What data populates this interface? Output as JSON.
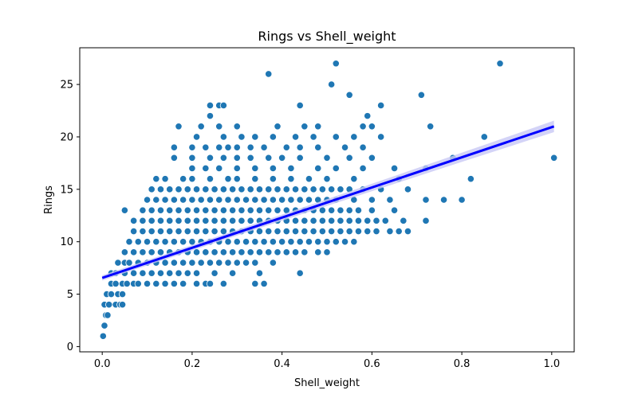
{
  "chart_data": {
    "type": "scatter",
    "title": "Rings vs Shell_weight",
    "xlabel": "Shell_weight",
    "ylabel": "Rings",
    "xlim": [
      -0.05,
      1.05
    ],
    "ylim": [
      -0.5,
      28.5
    ],
    "xticks": [
      0.0,
      0.2,
      0.4,
      0.6,
      0.8,
      1.0
    ],
    "xtick_labels": [
      "0.0",
      "0.2",
      "0.4",
      "0.6",
      "0.8",
      "1.0"
    ],
    "yticks": [
      0,
      5,
      10,
      15,
      20,
      25
    ],
    "ytick_labels": [
      "0",
      "5",
      "10",
      "15",
      "20",
      "25"
    ],
    "grid": false,
    "point_color": "#1f77b4",
    "regression": {
      "color": "#0000ff",
      "band_color": "#c8c8f5",
      "x": [
        0.0,
        1.005
      ],
      "y": [
        6.55,
        21.0
      ],
      "ci_halfwidth_start": 0.25,
      "ci_halfwidth_end": 0.55
    },
    "points": [
      [
        0.002,
        1
      ],
      [
        0.005,
        2
      ],
      [
        0.008,
        3
      ],
      [
        0.012,
        3
      ],
      [
        0.005,
        4
      ],
      [
        0.015,
        4
      ],
      [
        0.03,
        4
      ],
      [
        0.04,
        4
      ],
      [
        0.045,
        4
      ],
      [
        0.01,
        5
      ],
      [
        0.02,
        5
      ],
      [
        0.035,
        5
      ],
      [
        0.045,
        5
      ],
      [
        0.02,
        6
      ],
      [
        0.03,
        6
      ],
      [
        0.045,
        6
      ],
      [
        0.055,
        6
      ],
      [
        0.07,
        6
      ],
      [
        0.08,
        6
      ],
      [
        0.1,
        6
      ],
      [
        0.12,
        6
      ],
      [
        0.14,
        6
      ],
      [
        0.16,
        6
      ],
      [
        0.18,
        6
      ],
      [
        0.21,
        6
      ],
      [
        0.23,
        6
      ],
      [
        0.24,
        6
      ],
      [
        0.27,
        6
      ],
      [
        0.34,
        6
      ],
      [
        0.36,
        6
      ],
      [
        0.02,
        7
      ],
      [
        0.03,
        7
      ],
      [
        0.05,
        7
      ],
      [
        0.07,
        7
      ],
      [
        0.09,
        7
      ],
      [
        0.11,
        7
      ],
      [
        0.13,
        7
      ],
      [
        0.15,
        7
      ],
      [
        0.17,
        7
      ],
      [
        0.19,
        7
      ],
      [
        0.21,
        7
      ],
      [
        0.25,
        7
      ],
      [
        0.29,
        7
      ],
      [
        0.35,
        7
      ],
      [
        0.44,
        7
      ],
      [
        0.035,
        8
      ],
      [
        0.05,
        8
      ],
      [
        0.06,
        8
      ],
      [
        0.08,
        8
      ],
      [
        0.1,
        8
      ],
      [
        0.12,
        8
      ],
      [
        0.14,
        8
      ],
      [
        0.16,
        8
      ],
      [
        0.18,
        8
      ],
      [
        0.2,
        8
      ],
      [
        0.22,
        8
      ],
      [
        0.24,
        8
      ],
      [
        0.26,
        8
      ],
      [
        0.28,
        8
      ],
      [
        0.3,
        8
      ],
      [
        0.32,
        8
      ],
      [
        0.34,
        8
      ],
      [
        0.38,
        8
      ],
      [
        0.05,
        9
      ],
      [
        0.07,
        9
      ],
      [
        0.09,
        9
      ],
      [
        0.11,
        9
      ],
      [
        0.13,
        9
      ],
      [
        0.15,
        9
      ],
      [
        0.17,
        9
      ],
      [
        0.19,
        9
      ],
      [
        0.21,
        9
      ],
      [
        0.23,
        9
      ],
      [
        0.25,
        9
      ],
      [
        0.27,
        9
      ],
      [
        0.29,
        9
      ],
      [
        0.31,
        9
      ],
      [
        0.33,
        9
      ],
      [
        0.35,
        9
      ],
      [
        0.37,
        9
      ],
      [
        0.39,
        9
      ],
      [
        0.41,
        9
      ],
      [
        0.43,
        9
      ],
      [
        0.45,
        9
      ],
      [
        0.48,
        9
      ],
      [
        0.5,
        9
      ],
      [
        0.06,
        10
      ],
      [
        0.08,
        10
      ],
      [
        0.1,
        10
      ],
      [
        0.12,
        10
      ],
      [
        0.14,
        10
      ],
      [
        0.16,
        10
      ],
      [
        0.18,
        10
      ],
      [
        0.2,
        10
      ],
      [
        0.22,
        10
      ],
      [
        0.24,
        10
      ],
      [
        0.26,
        10
      ],
      [
        0.28,
        10
      ],
      [
        0.3,
        10
      ],
      [
        0.32,
        10
      ],
      [
        0.34,
        10
      ],
      [
        0.36,
        10
      ],
      [
        0.38,
        10
      ],
      [
        0.4,
        10
      ],
      [
        0.42,
        10
      ],
      [
        0.44,
        10
      ],
      [
        0.46,
        10
      ],
      [
        0.48,
        10
      ],
      [
        0.5,
        10
      ],
      [
        0.52,
        10
      ],
      [
        0.54,
        10
      ],
      [
        0.56,
        10
      ],
      [
        0.07,
        11
      ],
      [
        0.09,
        11
      ],
      [
        0.11,
        11
      ],
      [
        0.13,
        11
      ],
      [
        0.15,
        11
      ],
      [
        0.17,
        11
      ],
      [
        0.19,
        11
      ],
      [
        0.21,
        11
      ],
      [
        0.23,
        11
      ],
      [
        0.25,
        11
      ],
      [
        0.27,
        11
      ],
      [
        0.29,
        11
      ],
      [
        0.31,
        11
      ],
      [
        0.33,
        11
      ],
      [
        0.35,
        11
      ],
      [
        0.37,
        11
      ],
      [
        0.39,
        11
      ],
      [
        0.41,
        11
      ],
      [
        0.43,
        11
      ],
      [
        0.45,
        11
      ],
      [
        0.47,
        11
      ],
      [
        0.49,
        11
      ],
      [
        0.51,
        11
      ],
      [
        0.53,
        11
      ],
      [
        0.55,
        11
      ],
      [
        0.57,
        11
      ],
      [
        0.59,
        11
      ],
      [
        0.61,
        11
      ],
      [
        0.64,
        11
      ],
      [
        0.66,
        11
      ],
      [
        0.68,
        11
      ],
      [
        0.07,
        12
      ],
      [
        0.09,
        12
      ],
      [
        0.11,
        12
      ],
      [
        0.13,
        12
      ],
      [
        0.15,
        12
      ],
      [
        0.17,
        12
      ],
      [
        0.19,
        12
      ],
      [
        0.21,
        12
      ],
      [
        0.23,
        12
      ],
      [
        0.25,
        12
      ],
      [
        0.27,
        12
      ],
      [
        0.29,
        12
      ],
      [
        0.31,
        12
      ],
      [
        0.33,
        12
      ],
      [
        0.35,
        12
      ],
      [
        0.37,
        12
      ],
      [
        0.39,
        12
      ],
      [
        0.41,
        12
      ],
      [
        0.43,
        12
      ],
      [
        0.45,
        12
      ],
      [
        0.47,
        12
      ],
      [
        0.49,
        12
      ],
      [
        0.51,
        12
      ],
      [
        0.53,
        12
      ],
      [
        0.55,
        12
      ],
      [
        0.57,
        12
      ],
      [
        0.59,
        12
      ],
      [
        0.61,
        12
      ],
      [
        0.63,
        12
      ],
      [
        0.67,
        12
      ],
      [
        0.72,
        12
      ],
      [
        0.05,
        13
      ],
      [
        0.09,
        13
      ],
      [
        0.11,
        13
      ],
      [
        0.13,
        13
      ],
      [
        0.15,
        13
      ],
      [
        0.17,
        13
      ],
      [
        0.19,
        13
      ],
      [
        0.21,
        13
      ],
      [
        0.23,
        13
      ],
      [
        0.25,
        13
      ],
      [
        0.27,
        13
      ],
      [
        0.29,
        13
      ],
      [
        0.31,
        13
      ],
      [
        0.33,
        13
      ],
      [
        0.35,
        13
      ],
      [
        0.37,
        13
      ],
      [
        0.39,
        13
      ],
      [
        0.41,
        13
      ],
      [
        0.43,
        13
      ],
      [
        0.45,
        13
      ],
      [
        0.47,
        13
      ],
      [
        0.49,
        13
      ],
      [
        0.51,
        13
      ],
      [
        0.53,
        13
      ],
      [
        0.55,
        13
      ],
      [
        0.57,
        13
      ],
      [
        0.6,
        13
      ],
      [
        0.65,
        13
      ],
      [
        0.1,
        14
      ],
      [
        0.12,
        14
      ],
      [
        0.14,
        14
      ],
      [
        0.16,
        14
      ],
      [
        0.18,
        14
      ],
      [
        0.2,
        14
      ],
      [
        0.22,
        14
      ],
      [
        0.24,
        14
      ],
      [
        0.26,
        14
      ],
      [
        0.28,
        14
      ],
      [
        0.3,
        14
      ],
      [
        0.32,
        14
      ],
      [
        0.34,
        14
      ],
      [
        0.36,
        14
      ],
      [
        0.38,
        14
      ],
      [
        0.4,
        14
      ],
      [
        0.42,
        14
      ],
      [
        0.44,
        14
      ],
      [
        0.46,
        14
      ],
      [
        0.48,
        14
      ],
      [
        0.5,
        14
      ],
      [
        0.52,
        14
      ],
      [
        0.56,
        14
      ],
      [
        0.6,
        14
      ],
      [
        0.64,
        14
      ],
      [
        0.72,
        14
      ],
      [
        0.76,
        14
      ],
      [
        0.8,
        14
      ],
      [
        0.11,
        15
      ],
      [
        0.13,
        15
      ],
      [
        0.15,
        15
      ],
      [
        0.17,
        15
      ],
      [
        0.19,
        15
      ],
      [
        0.21,
        15
      ],
      [
        0.23,
        15
      ],
      [
        0.25,
        15
      ],
      [
        0.27,
        15
      ],
      [
        0.29,
        15
      ],
      [
        0.31,
        15
      ],
      [
        0.33,
        15
      ],
      [
        0.35,
        15
      ],
      [
        0.37,
        15
      ],
      [
        0.39,
        15
      ],
      [
        0.41,
        15
      ],
      [
        0.43,
        15
      ],
      [
        0.45,
        15
      ],
      [
        0.47,
        15
      ],
      [
        0.49,
        15
      ],
      [
        0.51,
        15
      ],
      [
        0.53,
        15
      ],
      [
        0.55,
        15
      ],
      [
        0.58,
        15
      ],
      [
        0.62,
        15
      ],
      [
        0.68,
        15
      ],
      [
        0.12,
        16
      ],
      [
        0.14,
        16
      ],
      [
        0.18,
        16
      ],
      [
        0.2,
        16
      ],
      [
        0.24,
        16
      ],
      [
        0.28,
        16
      ],
      [
        0.3,
        16
      ],
      [
        0.34,
        16
      ],
      [
        0.38,
        16
      ],
      [
        0.42,
        16
      ],
      [
        0.46,
        16
      ],
      [
        0.5,
        16
      ],
      [
        0.56,
        16
      ],
      [
        0.66,
        16
      ],
      [
        0.82,
        16
      ],
      [
        0.2,
        17
      ],
      [
        0.23,
        17
      ],
      [
        0.26,
        17
      ],
      [
        0.3,
        17
      ],
      [
        0.34,
        17
      ],
      [
        0.38,
        17
      ],
      [
        0.42,
        17
      ],
      [
        0.48,
        17
      ],
      [
        0.52,
        17
      ],
      [
        0.58,
        17
      ],
      [
        0.65,
        17
      ],
      [
        0.72,
        17
      ],
      [
        0.16,
        18
      ],
      [
        0.2,
        18
      ],
      [
        0.24,
        18
      ],
      [
        0.27,
        18
      ],
      [
        0.3,
        18
      ],
      [
        0.33,
        18
      ],
      [
        0.37,
        18
      ],
      [
        0.4,
        18
      ],
      [
        0.44,
        18
      ],
      [
        0.5,
        18
      ],
      [
        0.55,
        18
      ],
      [
        0.6,
        18
      ],
      [
        0.78,
        18
      ],
      [
        1.005,
        18
      ],
      [
        0.16,
        19
      ],
      [
        0.2,
        19
      ],
      [
        0.23,
        19
      ],
      [
        0.26,
        19
      ],
      [
        0.28,
        19
      ],
      [
        0.3,
        19
      ],
      [
        0.33,
        19
      ],
      [
        0.36,
        19
      ],
      [
        0.41,
        19
      ],
      [
        0.44,
        19
      ],
      [
        0.48,
        19
      ],
      [
        0.54,
        19
      ],
      [
        0.58,
        19
      ],
      [
        0.21,
        20
      ],
      [
        0.27,
        20
      ],
      [
        0.31,
        20
      ],
      [
        0.34,
        20
      ],
      [
        0.38,
        20
      ],
      [
        0.43,
        20
      ],
      [
        0.47,
        20
      ],
      [
        0.52,
        20
      ],
      [
        0.56,
        20
      ],
      [
        0.62,
        20
      ],
      [
        0.85,
        20
      ],
      [
        0.17,
        21
      ],
      [
        0.22,
        21
      ],
      [
        0.26,
        21
      ],
      [
        0.3,
        21
      ],
      [
        0.39,
        21
      ],
      [
        0.45,
        21
      ],
      [
        0.48,
        21
      ],
      [
        0.58,
        21
      ],
      [
        0.6,
        21
      ],
      [
        0.73,
        21
      ],
      [
        0.24,
        22
      ],
      [
        0.59,
        22
      ],
      [
        0.24,
        23
      ],
      [
        0.26,
        23
      ],
      [
        0.27,
        23
      ],
      [
        0.44,
        23
      ],
      [
        0.62,
        23
      ],
      [
        0.55,
        24
      ],
      [
        0.71,
        24
      ],
      [
        0.51,
        25
      ],
      [
        0.37,
        26
      ],
      [
        0.52,
        27
      ],
      [
        0.885,
        27
      ]
    ]
  }
}
